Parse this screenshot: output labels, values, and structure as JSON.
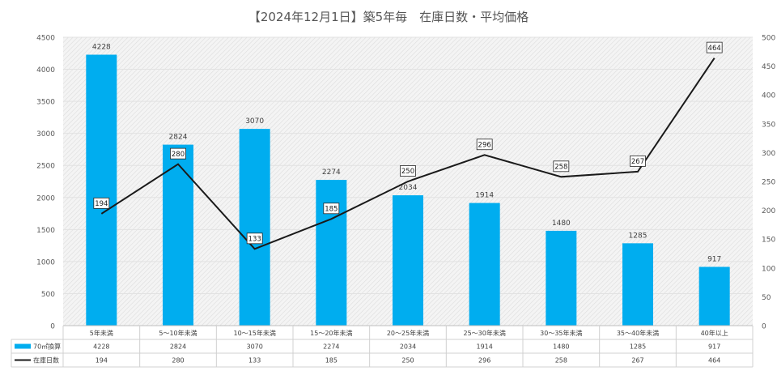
{
  "chart_data": {
    "type": "bar",
    "title": "【2024年12月1日】築5年毎　在庫日数・平均価格",
    "categories": [
      "5年未満",
      "5～10年未満",
      "10～15年未満",
      "15～20年未満",
      "20～25年未満",
      "25～30年未満",
      "30～35年未満",
      "35～40年未満",
      "40年以上"
    ],
    "series": [
      {
        "name": "70㎡換算",
        "type": "bar",
        "axis": "left",
        "color": "#00adef",
        "values": [
          4228,
          2824,
          3070,
          2274,
          2034,
          1914,
          1480,
          1285,
          917
        ]
      },
      {
        "name": "在庫日数",
        "type": "line",
        "axis": "right",
        "color": "#1a1a1a",
        "values": [
          194,
          280,
          133,
          185,
          250,
          296,
          258,
          267,
          464
        ]
      }
    ],
    "y_left": {
      "min": 0,
      "max": 4500,
      "step": 500
    },
    "y_right": {
      "min": 0,
      "max": 500,
      "step": 50
    },
    "grid": true,
    "legend": "data-table-below"
  }
}
